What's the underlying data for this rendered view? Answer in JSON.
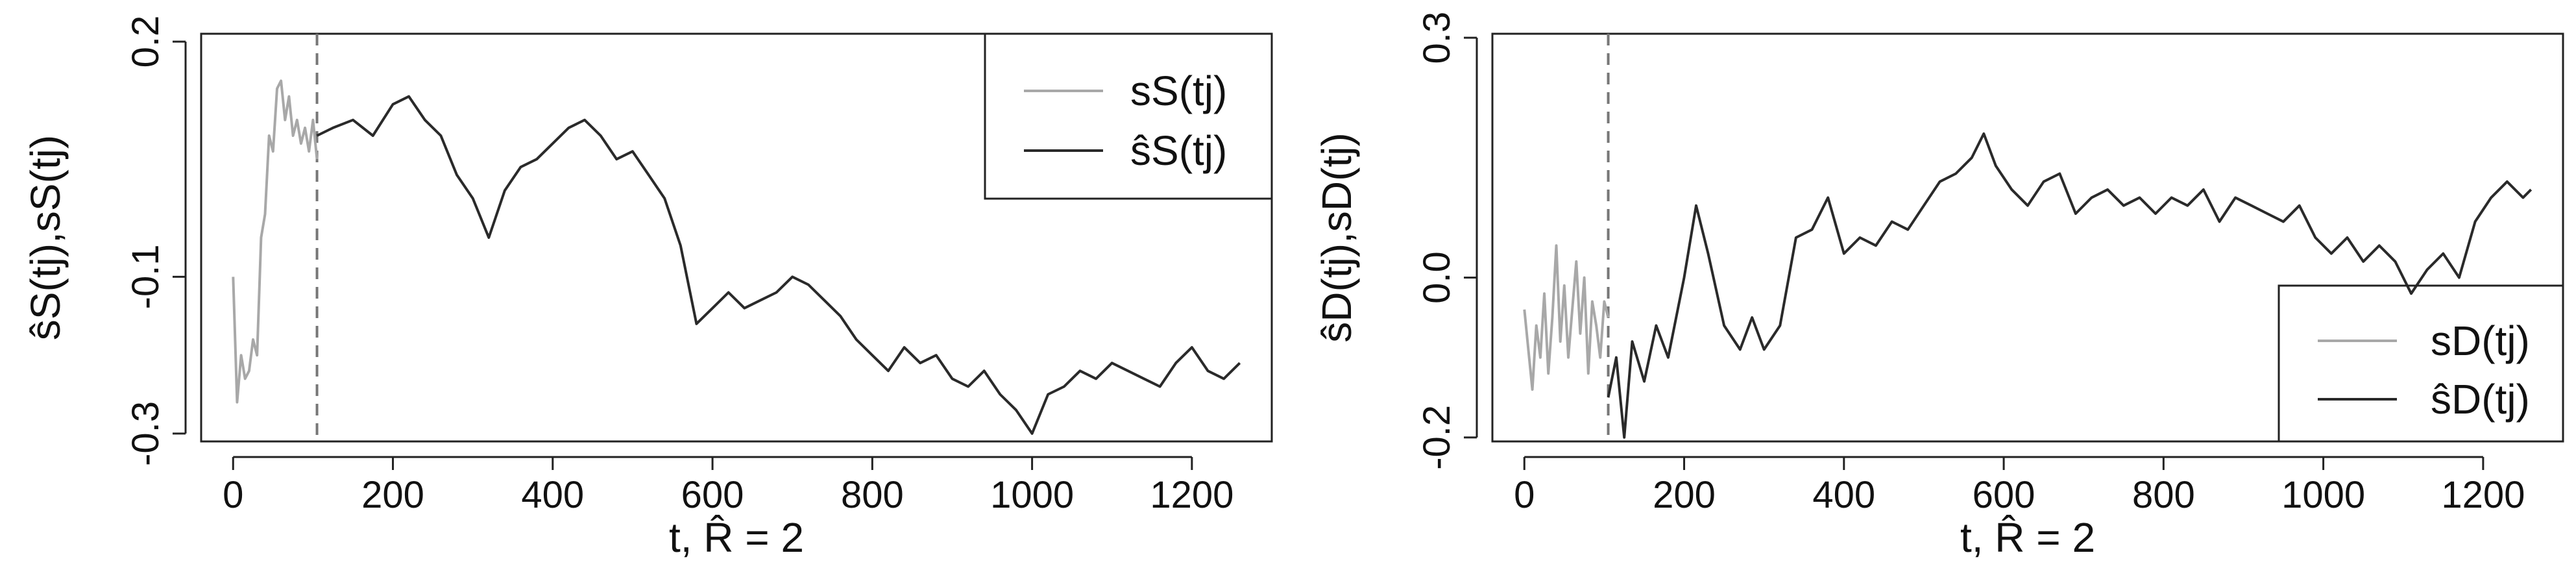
{
  "chart_data": [
    {
      "type": "line",
      "panel": "left",
      "title": "",
      "xlabel": "t,  R̂  =  2",
      "ylabel": "ŝS(tj),sS(tj)",
      "xlim": [
        -40,
        1300
      ],
      "ylim": [
        -0.31,
        0.21
      ],
      "xticks": [
        "0",
        "200",
        "400",
        "600",
        "800",
        "1000",
        "1200"
      ],
      "yticks": [
        "-0.3",
        "-0.1",
        "0.2"
      ],
      "ytick_values": [
        -0.3,
        -0.1,
        0.2
      ],
      "vline_x": 105,
      "legend_position": "top-right",
      "legend": [
        "sS(tj)",
        "ŝS(tj)"
      ],
      "series": [
        {
          "name": "sS(tj)",
          "color": "#a8a8a8",
          "x": [
            0,
            5,
            10,
            15,
            20,
            25,
            30,
            35,
            40,
            45,
            50,
            55,
            60,
            65,
            70,
            75,
            80,
            85,
            90,
            95,
            100,
            105
          ],
          "y": [
            -0.1,
            -0.26,
            -0.2,
            -0.23,
            -0.22,
            -0.18,
            -0.2,
            -0.05,
            -0.02,
            0.08,
            0.06,
            0.14,
            0.15,
            0.1,
            0.13,
            0.08,
            0.1,
            0.07,
            0.09,
            0.06,
            0.1,
            0.05
          ]
        },
        {
          "name": "ŝS(tj)",
          "color": "#2a2a2a",
          "x": [
            105,
            125,
            150,
            175,
            200,
            220,
            240,
            260,
            280,
            300,
            320,
            340,
            360,
            380,
            400,
            420,
            440,
            460,
            480,
            500,
            520,
            540,
            560,
            580,
            600,
            620,
            640,
            660,
            680,
            700,
            720,
            740,
            760,
            780,
            800,
            820,
            840,
            860,
            880,
            900,
            920,
            940,
            960,
            980,
            1000,
            1020,
            1040,
            1060,
            1080,
            1100,
            1120,
            1140,
            1160,
            1180,
            1200,
            1220,
            1240,
            1260
          ],
          "y": [
            0.08,
            0.09,
            0.1,
            0.08,
            0.12,
            0.13,
            0.1,
            0.08,
            0.03,
            0.0,
            -0.05,
            0.01,
            0.04,
            0.05,
            0.07,
            0.09,
            0.1,
            0.08,
            0.05,
            0.06,
            0.03,
            0.0,
            -0.06,
            -0.16,
            -0.14,
            -0.12,
            -0.14,
            -0.13,
            -0.12,
            -0.1,
            -0.11,
            -0.13,
            -0.15,
            -0.18,
            -0.2,
            -0.22,
            -0.19,
            -0.21,
            -0.2,
            -0.23,
            -0.24,
            -0.22,
            -0.25,
            -0.27,
            -0.3,
            -0.25,
            -0.24,
            -0.22,
            -0.23,
            -0.21,
            -0.22,
            -0.23,
            -0.24,
            -0.21,
            -0.19,
            -0.22,
            -0.23,
            -0.21
          ]
        }
      ]
    },
    {
      "type": "line",
      "panel": "right",
      "title": "",
      "xlabel": "t,  R̂  =  2",
      "ylabel": "ŝD(tj),sD(tj)",
      "xlim": [
        -40,
        1300
      ],
      "ylim": [
        -0.205,
        0.305
      ],
      "xticks": [
        "0",
        "200",
        "400",
        "600",
        "800",
        "1000",
        "1200"
      ],
      "yticks": [
        "-0.2",
        "0.0",
        "0.3"
      ],
      "ytick_values": [
        -0.2,
        0.0,
        0.3
      ],
      "vline_x": 105,
      "legend_position": "bottom-right",
      "legend": [
        "sD(tj)",
        "ŝD(tj)"
      ],
      "series": [
        {
          "name": "sD(tj)",
          "color": "#a8a8a8",
          "x": [
            0,
            5,
            10,
            15,
            20,
            25,
            30,
            35,
            40,
            45,
            50,
            55,
            60,
            65,
            70,
            75,
            80,
            85,
            90,
            95,
            100,
            105
          ],
          "y": [
            -0.04,
            -0.09,
            -0.14,
            -0.06,
            -0.1,
            -0.02,
            -0.12,
            -0.05,
            0.04,
            -0.08,
            -0.01,
            -0.1,
            -0.04,
            0.02,
            -0.07,
            0.0,
            -0.12,
            -0.03,
            -0.06,
            -0.1,
            -0.03,
            -0.05
          ]
        },
        {
          "name": "ŝD(tj)",
          "color": "#2a2a2a",
          "x": [
            105,
            115,
            125,
            135,
            150,
            165,
            180,
            200,
            215,
            230,
            250,
            270,
            285,
            300,
            320,
            340,
            360,
            380,
            400,
            420,
            440,
            460,
            480,
            500,
            520,
            540,
            560,
            575,
            590,
            610,
            630,
            650,
            670,
            690,
            710,
            730,
            750,
            770,
            790,
            810,
            830,
            850,
            870,
            890,
            910,
            930,
            950,
            970,
            990,
            1010,
            1030,
            1050,
            1070,
            1090,
            1110,
            1130,
            1150,
            1170,
            1190,
            1210,
            1230,
            1250,
            1260
          ],
          "y": [
            -0.15,
            -0.1,
            -0.2,
            -0.08,
            -0.13,
            -0.06,
            -0.1,
            0.0,
            0.09,
            0.03,
            -0.06,
            -0.09,
            -0.05,
            -0.09,
            -0.06,
            0.05,
            0.06,
            0.1,
            0.03,
            0.05,
            0.04,
            0.07,
            0.06,
            0.09,
            0.12,
            0.13,
            0.15,
            0.18,
            0.14,
            0.11,
            0.09,
            0.12,
            0.13,
            0.08,
            0.1,
            0.11,
            0.09,
            0.1,
            0.08,
            0.1,
            0.09,
            0.11,
            0.07,
            0.1,
            0.09,
            0.08,
            0.07,
            0.09,
            0.05,
            0.03,
            0.05,
            0.02,
            0.04,
            0.02,
            -0.02,
            0.01,
            0.03,
            0.0,
            0.07,
            0.1,
            0.12,
            0.1,
            0.11
          ]
        }
      ]
    }
  ]
}
